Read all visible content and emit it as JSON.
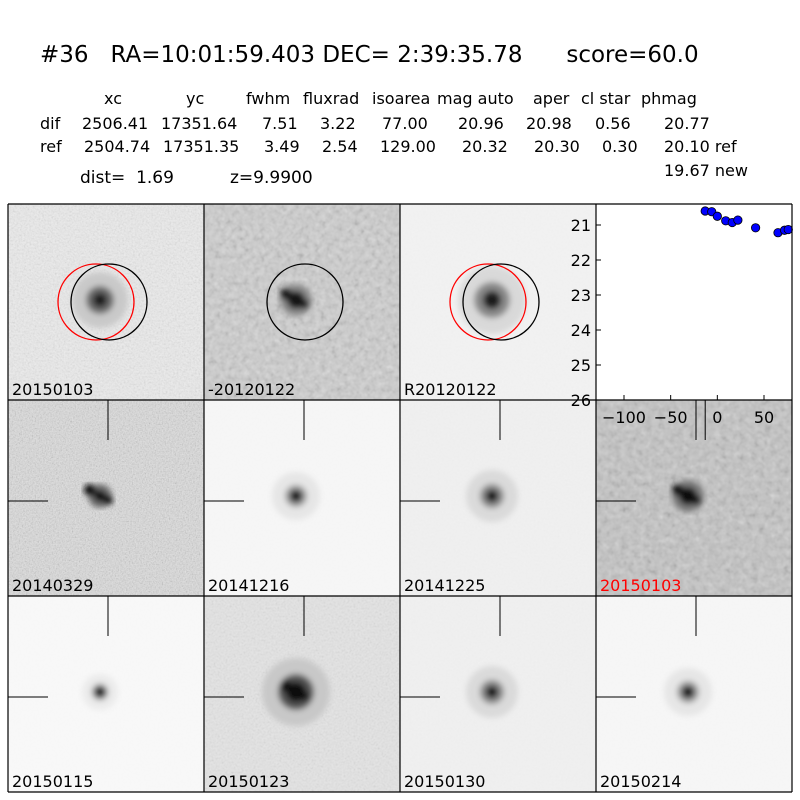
{
  "header": {
    "title": "#36   RA=10:01:59.403 DEC= 2:39:35.78      score=60.0",
    "columns": [
      "xc",
      "yc",
      "fwhm",
      "fluxrad",
      "isoarea",
      "mag auto",
      "aper",
      "cl star",
      "phmag"
    ],
    "rows": [
      {
        "label": "dif",
        "values": [
          "2506.41",
          "17351.64",
          "7.51",
          "3.22",
          "77.00",
          "20.96",
          "20.98",
          "0.56",
          "20.77"
        ]
      },
      {
        "label": "ref",
        "values": [
          "2504.74",
          "17351.35",
          "3.49",
          "2.54",
          "129.00",
          "20.32",
          "20.30",
          "0.30",
          "20.10 ref"
        ]
      }
    ],
    "dist_text": "dist=  1.69",
    "z_text": "z=9.9900",
    "new_mag_text": "19.67 new"
  },
  "stamps": [
    {
      "label": "20150103",
      "kind": "science",
      "circles": "both"
    },
    {
      "label": "-20120122",
      "kind": "diff",
      "circles": "black"
    },
    {
      "label": "R20120122",
      "kind": "reference",
      "circles": "both"
    },
    {
      "label": "20140329",
      "kind": "noisy",
      "crosshair": true
    },
    {
      "label": "20141216",
      "kind": "clean",
      "crosshair": true
    },
    {
      "label": "20141225",
      "kind": "clean2",
      "crosshair": true
    },
    {
      "label": "20150103",
      "kind": "diff2",
      "crosshair": true,
      "highlight": true
    },
    {
      "label": "20150115",
      "kind": "small",
      "crosshair": true
    },
    {
      "label": "20150123",
      "kind": "bright",
      "crosshair": true
    },
    {
      "label": "20150130",
      "kind": "clean2",
      "crosshair": true
    },
    {
      "label": "20150214",
      "kind": "clean",
      "crosshair": true
    }
  ],
  "colors": {
    "circle_red": "#ff0000",
    "circle_black": "#000000",
    "point": "#0000ff",
    "highlight_label": "#ff0000"
  },
  "chart_data": {
    "type": "scatter",
    "title": "",
    "xlabel": "",
    "ylabel": "",
    "xlim": [
      -130,
      80
    ],
    "ylim": [
      26,
      20.4
    ],
    "x_ticks": [
      -100,
      -50,
      0,
      50
    ],
    "y_ticks": [
      21,
      22,
      23,
      24,
      25,
      26
    ],
    "y_inverted": true,
    "grid": false,
    "series": [
      {
        "x": [
          -13,
          -6,
          0,
          9,
          16,
          22,
          41,
          65,
          72,
          76
        ],
        "y": [
          20.6,
          20.62,
          20.75,
          20.88,
          20.93,
          20.86,
          21.08,
          21.22,
          21.15,
          21.13
        ]
      }
    ]
  }
}
